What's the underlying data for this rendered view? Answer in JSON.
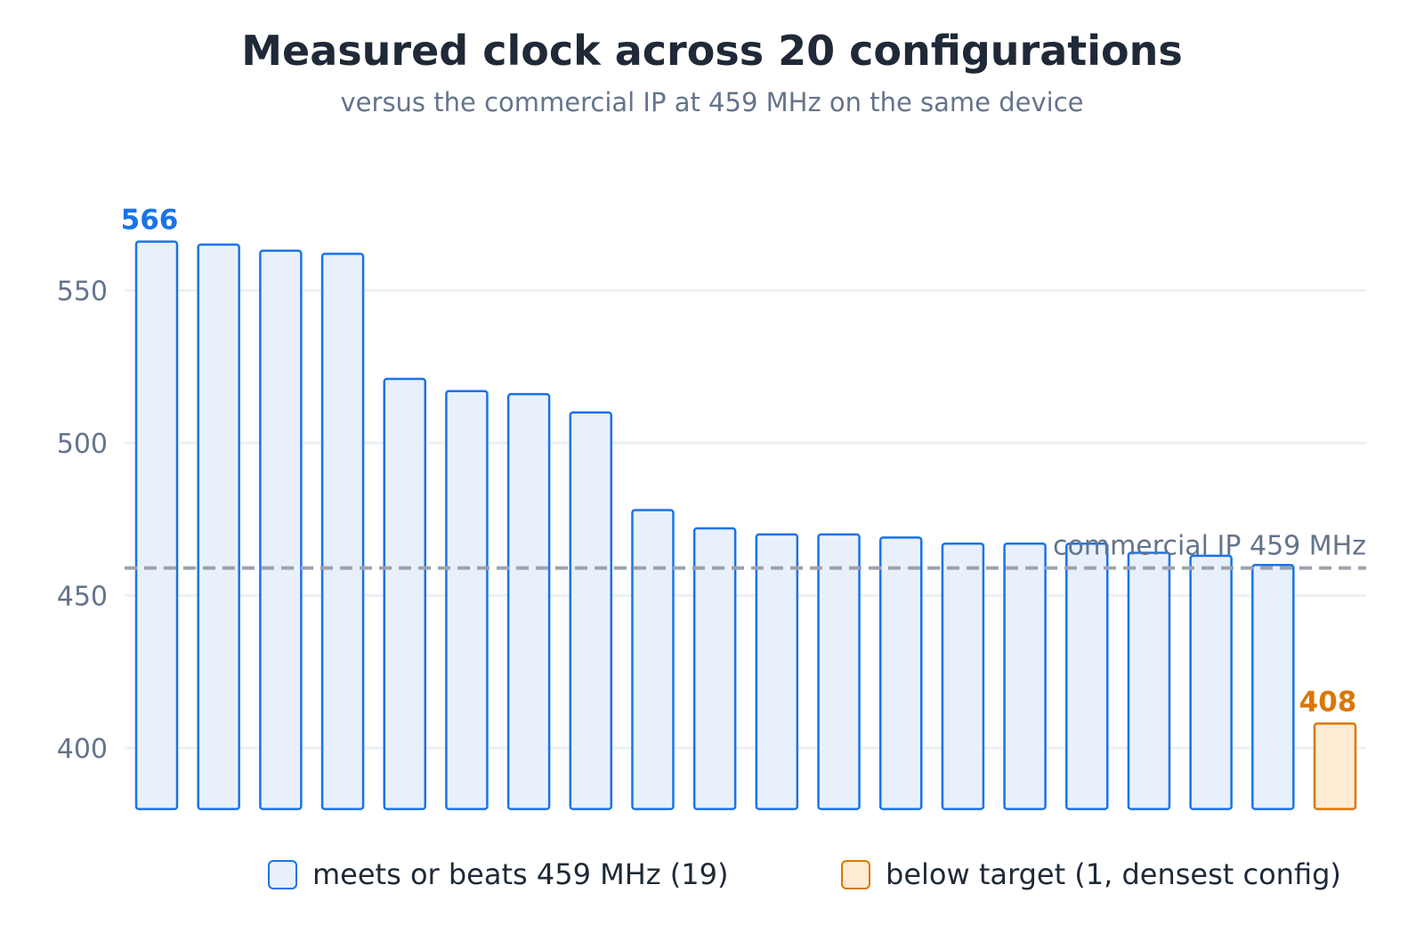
{
  "chart_data": {
    "type": "bar",
    "title": "Measured clock across 20 configurations",
    "subtitle": "versus the commercial IP at 459 MHz on the same device",
    "xlabel": "",
    "ylabel": "",
    "ylim": [
      380,
      580
    ],
    "yticks": [
      400,
      450,
      500,
      550
    ],
    "grid": "horizontal",
    "values": [
      566,
      565,
      563,
      562,
      521,
      517,
      516,
      510,
      478,
      472,
      470,
      470,
      469,
      467,
      467,
      467,
      464,
      463,
      460,
      408
    ],
    "highlight_labels": [
      {
        "index": 0,
        "text": "566",
        "color": "#1a73e8"
      },
      {
        "index": 19,
        "text": "408",
        "color": "#d97706"
      }
    ],
    "reference_line": {
      "value": 459,
      "label": "commercial IP 459 MHz",
      "color": "#9ca3af"
    },
    "categories_style": {
      "meets": {
        "fill": "#e8f0fc",
        "stroke": "#1a73e8"
      },
      "below": {
        "fill": "#fdebd3",
        "stroke": "#d97706"
      }
    },
    "bar_category": [
      "meets",
      "meets",
      "meets",
      "meets",
      "meets",
      "meets",
      "meets",
      "meets",
      "meets",
      "meets",
      "meets",
      "meets",
      "meets",
      "meets",
      "meets",
      "meets",
      "meets",
      "meets",
      "meets",
      "below"
    ],
    "legend": [
      {
        "key": "meets",
        "label": "meets or beats 459 MHz (19)"
      },
      {
        "key": "below",
        "label": "below target (1, densest config)"
      }
    ],
    "legend_position": "bottom"
  }
}
